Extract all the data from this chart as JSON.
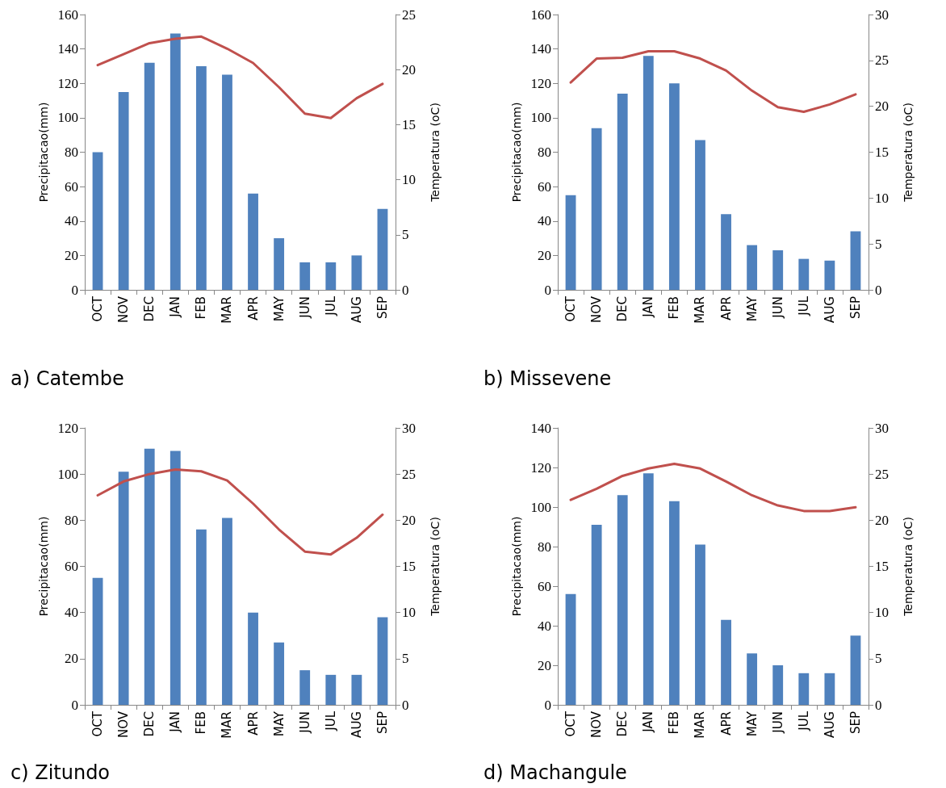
{
  "chart_data": [
    {
      "type": "bar",
      "title": "a) Catembe",
      "ylabel": "Precipitacao(mm)",
      "y2label": "Temperatura (oC)",
      "categories": [
        "OCT",
        "NOV",
        "DEC",
        "JAN",
        "FEB",
        "MAR",
        "APR",
        "MAY",
        "JUN",
        "JUL",
        "AUG",
        "SEP"
      ],
      "ylim": [
        0,
        160
      ],
      "yticks": [
        0,
        20,
        40,
        60,
        80,
        100,
        120,
        140,
        160
      ],
      "y2lim": [
        0,
        25
      ],
      "y2ticks": [
        0,
        5,
        10,
        15,
        20,
        25
      ],
      "grid": false,
      "series": [
        {
          "color": "#4f81bd",
          "values": [
            80,
            115,
            132,
            149,
            130,
            125,
            56,
            30,
            16,
            16,
            20,
            47
          ]
        },
        {
          "type": "line",
          "axis": "y2",
          "color": "#c0504d",
          "marker": "none",
          "values": [
            20.4,
            21.4,
            22.4,
            22.8,
            23.0,
            21.9,
            20.6,
            18.4,
            16.0,
            15.6,
            17.4,
            18.7
          ]
        }
      ]
    },
    {
      "type": "bar",
      "title": "b) Missevene",
      "ylabel": "Precipitacao(mm)",
      "y2label": "Temperatura (oC)",
      "categories": [
        "OCT",
        "NOV",
        "DEC",
        "JAN",
        "FEB",
        "MAR",
        "APR",
        "MAY",
        "JUN",
        "JUL",
        "AUG",
        "SEP"
      ],
      "ylim": [
        0,
        160
      ],
      "yticks": [
        0,
        20,
        40,
        60,
        80,
        100,
        120,
        140,
        160
      ],
      "y2lim": [
        0,
        30
      ],
      "y2ticks": [
        0,
        5,
        10,
        15,
        20,
        25,
        30
      ],
      "grid": false,
      "series": [
        {
          "color": "#4f81bd",
          "values": [
            55,
            94,
            114,
            136,
            120,
            87,
            44,
            26,
            23,
            18,
            17,
            34
          ]
        },
        {
          "type": "line",
          "axis": "y2",
          "color": "#c0504d",
          "marker": "none",
          "values": [
            22.6,
            25.2,
            25.3,
            26.0,
            26.0,
            25.2,
            23.9,
            21.7,
            19.9,
            19.4,
            20.2,
            21.3
          ]
        }
      ]
    },
    {
      "type": "bar",
      "title": "c) Zitundo",
      "ylabel": "Precipitacao(mm)",
      "y2label": "Temperatura (oC)",
      "categories": [
        "OCT",
        "NOV",
        "DEC",
        "JAN",
        "FEB",
        "MAR",
        "APR",
        "MAY",
        "JUN",
        "JUL",
        "AUG",
        "SEP"
      ],
      "ylim": [
        0,
        120
      ],
      "yticks": [
        0,
        20,
        40,
        60,
        80,
        100,
        120
      ],
      "y2lim": [
        0,
        30
      ],
      "y2ticks": [
        0,
        5,
        10,
        15,
        20,
        25,
        30
      ],
      "grid": false,
      "series": [
        {
          "color": "#4f81bd",
          "values": [
            55,
            101,
            111,
            110,
            76,
            81,
            40,
            27,
            15,
            13,
            13,
            38
          ]
        },
        {
          "type": "line",
          "axis": "y2",
          "color": "#c0504d",
          "marker": "none",
          "values": [
            22.7,
            24.2,
            25.0,
            25.5,
            25.3,
            24.3,
            21.8,
            19.0,
            16.6,
            16.3,
            18.1,
            20.6
          ]
        }
      ]
    },
    {
      "type": "bar",
      "title": "d) Machangule",
      "ylabel": "Precipitacao(mm)",
      "y2label": "Temperatura (oC)",
      "categories": [
        "OCT",
        "NOV",
        "DEC",
        "JAN",
        "FEB",
        "MAR",
        "APR",
        "MAY",
        "JUN",
        "JUL",
        "AUG",
        "SEP"
      ],
      "ylim": [
        0,
        140
      ],
      "yticks": [
        0,
        20,
        40,
        60,
        80,
        100,
        120,
        140
      ],
      "y2lim": [
        0,
        30
      ],
      "y2ticks": [
        0,
        5,
        10,
        15,
        20,
        25,
        30
      ],
      "grid": false,
      "series": [
        {
          "color": "#4f81bd",
          "values": [
            56,
            91,
            106,
            117,
            103,
            81,
            43,
            26,
            20,
            16,
            16,
            35
          ]
        },
        {
          "type": "line",
          "axis": "y2",
          "color": "#c0504d",
          "marker": "none",
          "values": [
            22.2,
            23.4,
            24.8,
            25.6,
            26.1,
            25.6,
            24.2,
            22.7,
            21.6,
            21.0,
            21.0,
            21.4
          ]
        }
      ]
    }
  ]
}
